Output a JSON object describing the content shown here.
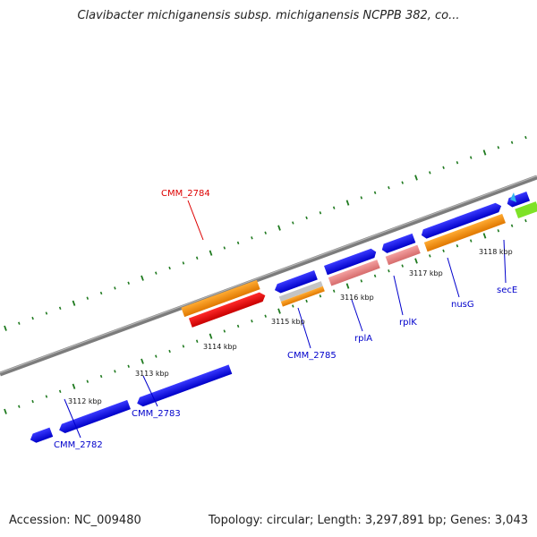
{
  "title": "Clavibacter michiganensis subsp. michiganensis NCPPB 382, co...",
  "footer": {
    "accession": "Accession: NC_009480",
    "summary": "Topology: circular; Length: 3,297,891 bp; Genes: 3,043"
  },
  "colors": {
    "backbone": "#888888",
    "forward_strand": "#1a1ae6",
    "label_blue": "#0000cc",
    "label_red": "#dd0000",
    "tick_green": "#1f7a1f"
  },
  "ticks": [
    "3112 kbp",
    "3113 kbp",
    "3114 kbp",
    "3115 kbp",
    "3116 kbp",
    "3117 kbp",
    "3118 kbp"
  ],
  "gene_labels": [
    "CMM_2784",
    "CMM_2782",
    "CMM_2783",
    "CMM_2785",
    "rplA",
    "rplK",
    "nusG",
    "secE"
  ]
}
